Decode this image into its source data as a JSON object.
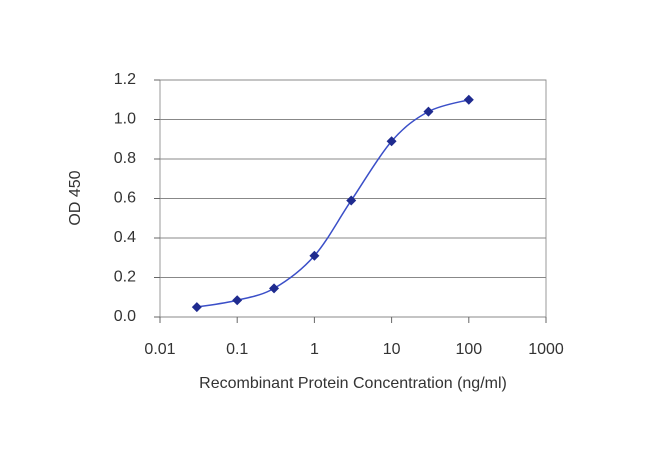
{
  "chart_data": {
    "type": "line",
    "xlabel": "Recombinant Protein Concentration (ng/ml)",
    "ylabel": "OD 450",
    "x": [
      0.03,
      0.1,
      0.3,
      1,
      3,
      10,
      30,
      100
    ],
    "series": [
      {
        "name": null,
        "color": "#3b4fc8",
        "marker_color": "#1f2b8f",
        "values": [
          0.05,
          0.085,
          0.145,
          0.31,
          0.59,
          0.89,
          1.04,
          1.1
        ]
      }
    ],
    "xscale": "log",
    "xlim": [
      0.01,
      1000
    ],
    "xticks": [
      0.01,
      0.1,
      1,
      10,
      100,
      1000
    ],
    "ylim": [
      0,
      1.2
    ],
    "yticks": [
      {
        "value": 0,
        "label": "0.0"
      },
      0.2,
      0.4,
      0.6,
      0.8,
      {
        "value": 1,
        "label": "1.0"
      },
      1.2
    ],
    "grid": true
  }
}
